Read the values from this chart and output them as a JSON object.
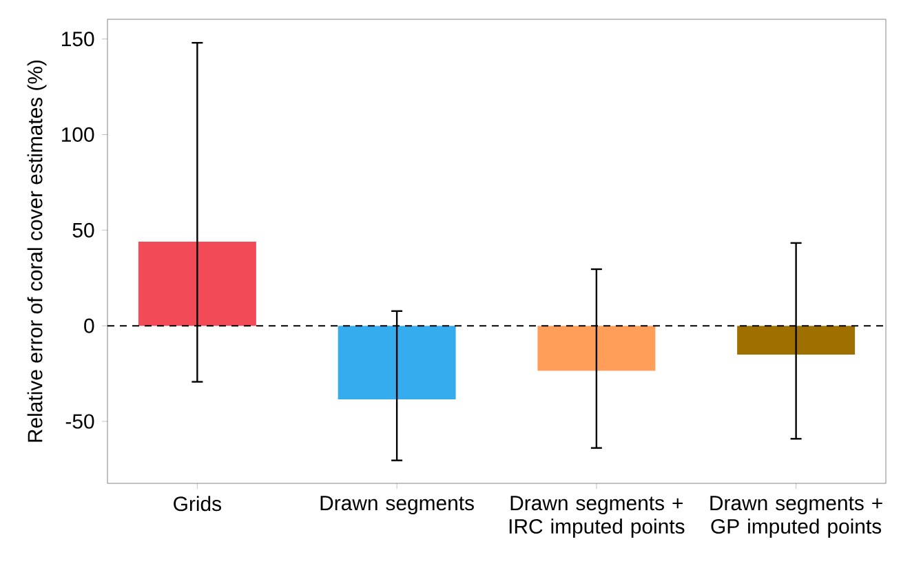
{
  "chart_data": {
    "type": "bar",
    "ylabel": "Relative error of coral cover estimates (%)",
    "categories": [
      "Grids",
      "Drawn segments",
      "Drawn segments + IRC imputed points",
      "Drawn segments + GP imputed points"
    ],
    "values": [
      44,
      -38.5,
      -23.5,
      -15.1
    ],
    "colors": [
      "#f24a57",
      "#35aced",
      "#ff9e59",
      "#9e7000"
    ],
    "errors": [
      [
        -29.3,
        148
      ],
      [
        -70.4,
        7.7
      ],
      [
        -63.9,
        29.6
      ],
      [
        -59.1,
        43.3
      ]
    ],
    "ylim": [
      -82.4,
      160.3
    ],
    "yticks": [
      -50,
      0,
      50,
      100,
      150
    ],
    "ref_lines": [
      {
        "axis": "y",
        "value": 0,
        "line_style": "dashed"
      }
    ],
    "grid": false
  }
}
